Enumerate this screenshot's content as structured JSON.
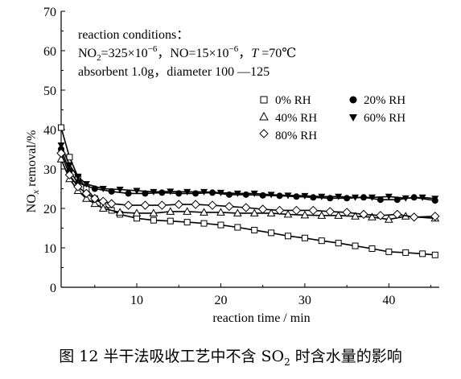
{
  "caption": {
    "prefix": "图 12   半干法吸收工艺中不含 SO",
    "sub": "2",
    "suffix": " 时含水量的影响"
  },
  "chart_data": {
    "type": "line",
    "xlabel": "reaction time / min",
    "ylabel": {
      "pre": "NO",
      "sub": "x",
      "post": " removal/%"
    },
    "xlim": [
      1,
      46
    ],
    "ylim": [
      0,
      70
    ],
    "xticks": [
      10,
      20,
      30,
      40
    ],
    "yticks": [
      0,
      10,
      20,
      30,
      40,
      50,
      60,
      70
    ],
    "grid": false,
    "legend_position": "right",
    "conditions": {
      "line1": "reaction conditions：",
      "line2": {
        "a": "NO",
        "a_sub": "2",
        "b": "=325×10",
        "b_sup": "−6",
        "c": "，NO=15×10",
        "c_sup": "−6",
        "d": "，",
        "t": "T",
        "e": " =70℃"
      },
      "line3": "absorbent 1.0g，diameter 100 —125"
    },
    "series": [
      {
        "name": "0% RH",
        "marker": "square-open",
        "x": [
          1,
          2,
          3,
          4,
          5,
          6,
          7,
          8,
          10,
          12,
          14,
          16,
          18,
          20,
          22,
          24,
          26,
          28,
          30,
          32,
          34,
          36,
          38,
          40,
          42,
          44,
          45.5
        ],
        "y": [
          40.5,
          33,
          28,
          25,
          22.5,
          21,
          19.5,
          18.5,
          17.5,
          17,
          16.8,
          16.5,
          16.2,
          15.8,
          15.2,
          14.5,
          13.8,
          13,
          12.5,
          11.8,
          11.2,
          10.5,
          9.8,
          9,
          8.8,
          8.5,
          8.2
        ]
      },
      {
        "name": "20% RH",
        "marker": "circle-filled",
        "x": [
          1,
          2,
          3,
          5,
          7,
          9,
          11,
          13,
          15,
          17,
          19,
          21,
          23,
          25,
          27,
          29,
          31,
          33,
          35,
          37,
          39,
          41,
          43,
          45.5
        ],
        "y": [
          35,
          29.5,
          26.5,
          25,
          24.3,
          23.8,
          23.8,
          24,
          23.8,
          23.8,
          24,
          23.5,
          23.5,
          23.3,
          23.2,
          23,
          22.8,
          22.6,
          22.6,
          22.8,
          22.2,
          22.2,
          22.8,
          22
        ]
      },
      {
        "name": "40% RH",
        "marker": "triangle-open",
        "x": [
          1,
          2,
          3,
          4,
          5,
          6,
          8,
          10,
          12,
          14,
          16,
          18,
          20,
          22,
          24,
          26,
          28,
          30,
          32,
          34,
          36,
          38,
          40,
          42,
          45.5
        ],
        "y": [
          32.5,
          27.5,
          24.5,
          22.5,
          21.2,
          20,
          19,
          18.8,
          18.8,
          19.2,
          19.2,
          19,
          19,
          18.8,
          18.8,
          18.8,
          18.5,
          18.3,
          18.2,
          18.2,
          18,
          17.8,
          17.2,
          18,
          17.5
        ]
      },
      {
        "name": "60% RH",
        "marker": "triangle-down-filled",
        "x": [
          1,
          2,
          3,
          4,
          6,
          8,
          10,
          12,
          14,
          16,
          18,
          20,
          22,
          24,
          26,
          28,
          30,
          32,
          34,
          36,
          38,
          40,
          42,
          44,
          45.5
        ],
        "y": [
          36,
          31,
          28,
          26.2,
          25,
          24.8,
          24.5,
          24.2,
          24.3,
          24.2,
          24.2,
          24,
          23.8,
          23.8,
          23.5,
          23.3,
          23.2,
          23,
          23,
          22.8,
          22.8,
          23,
          22.6,
          22.8,
          22.5
        ]
      },
      {
        "name": "80% RH",
        "marker": "diamond-open",
        "x": [
          1,
          2,
          3,
          4,
          5,
          6,
          7,
          9,
          11,
          13,
          15,
          17,
          19,
          21,
          23,
          25,
          27,
          29,
          31,
          33,
          35,
          37,
          39,
          41,
          43,
          45.5
        ],
        "y": [
          34,
          28.5,
          25.5,
          23.8,
          22.5,
          21.8,
          21.2,
          20.8,
          20.8,
          20.8,
          21,
          21,
          20.8,
          20.5,
          20.2,
          19.8,
          19.5,
          19.5,
          19.5,
          19.2,
          19,
          18.5,
          18.2,
          18.5,
          17.8,
          18
        ]
      }
    ]
  }
}
